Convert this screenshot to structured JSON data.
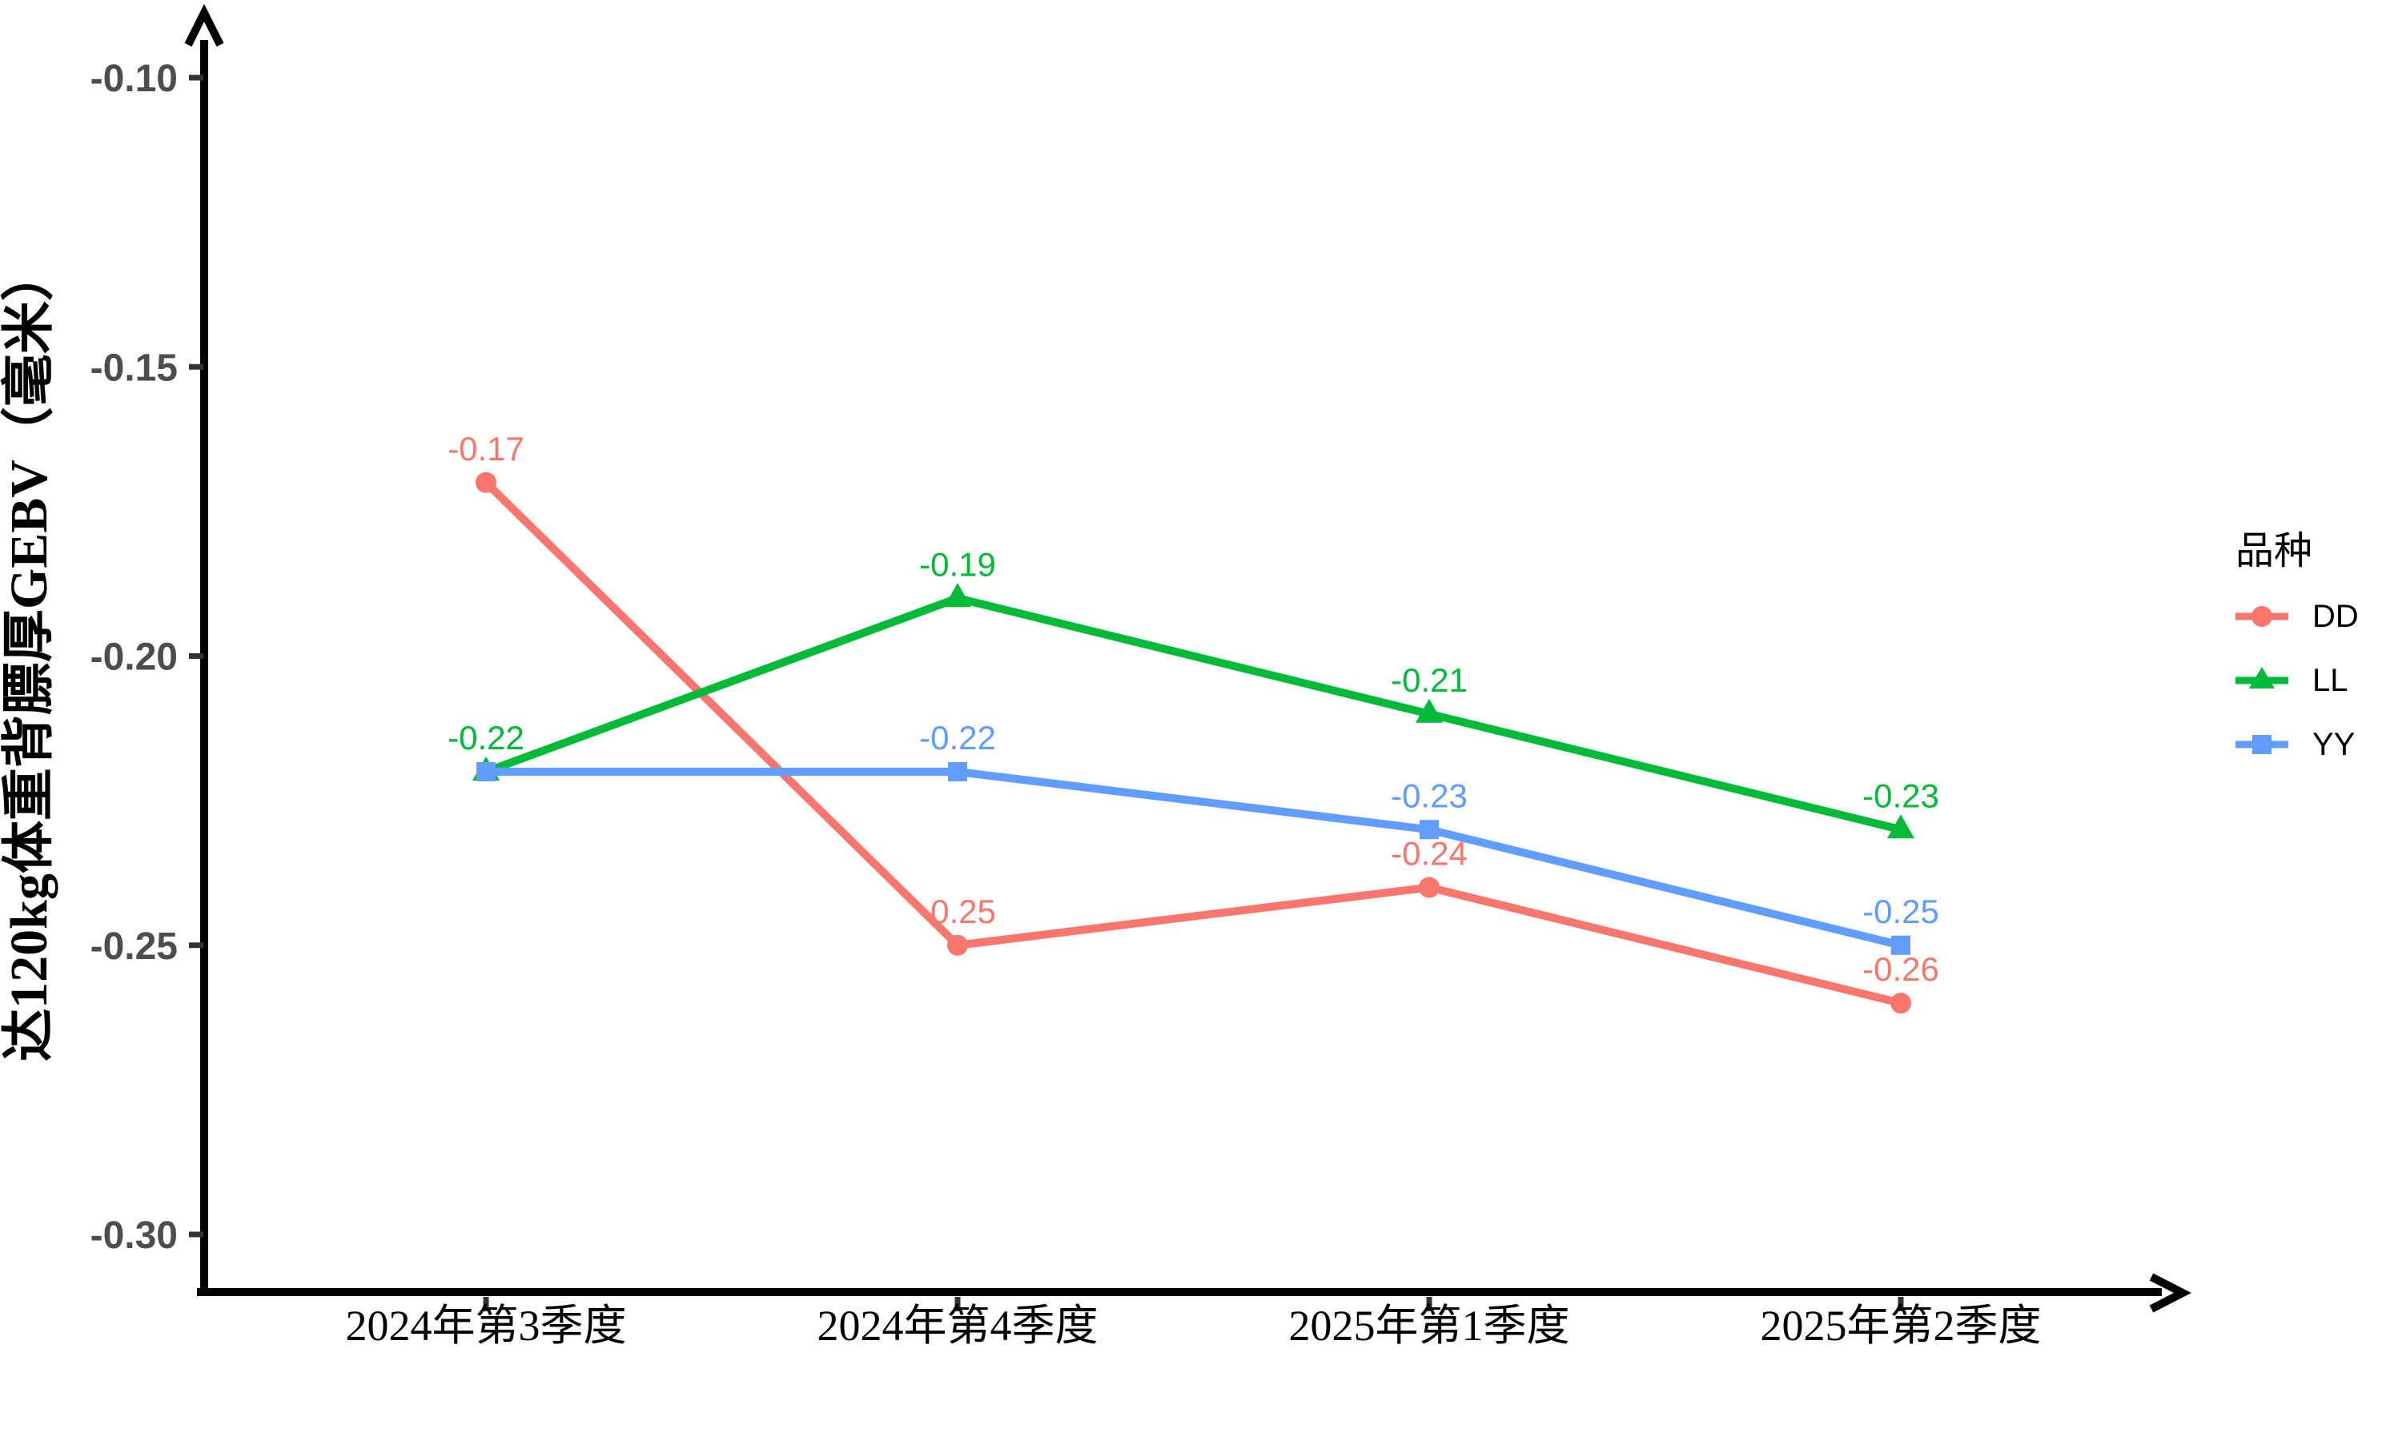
{
  "chart_data": {
    "type": "line",
    "title": "",
    "categories": [
      "2024年第3季度",
      "2024年第4季度",
      "2025年第1季度",
      "2025年第2季度"
    ],
    "xlabel": "",
    "ylabel": "达120kg体重背膘厚GEBV（毫米）",
    "y_ticks": [
      "-0.10",
      "-0.15",
      "-0.20",
      "-0.25",
      "-0.30"
    ],
    "ylim": [
      -0.3,
      -0.1
    ],
    "grid": false,
    "legend": {
      "title": "品种",
      "position": "right"
    },
    "series": [
      {
        "name": "DD",
        "color": "#F8766D",
        "marker": "circle",
        "values": [
          -0.17,
          -0.25,
          -0.24,
          -0.26
        ],
        "labels": [
          "-0.17",
          "-0.25",
          "-0.24",
          "-0.26"
        ]
      },
      {
        "name": "LL",
        "color": "#00BA38",
        "marker": "triangle",
        "values": [
          -0.22,
          -0.19,
          -0.21,
          -0.23
        ],
        "labels": [
          "-0.22",
          "-0.19",
          "-0.21",
          "-0.23"
        ]
      },
      {
        "name": "YY",
        "color": "#619CFF",
        "marker": "square",
        "values": [
          -0.22,
          -0.22,
          -0.23,
          -0.25
        ],
        "labels": [
          "-0.22",
          "-0.22",
          "-0.23",
          "-0.25"
        ]
      }
    ],
    "axis_color": "#000000",
    "tick_color": "#333333",
    "y_tick_label_color": "#4d4d4d",
    "x_tick_label_color": "#000000"
  }
}
